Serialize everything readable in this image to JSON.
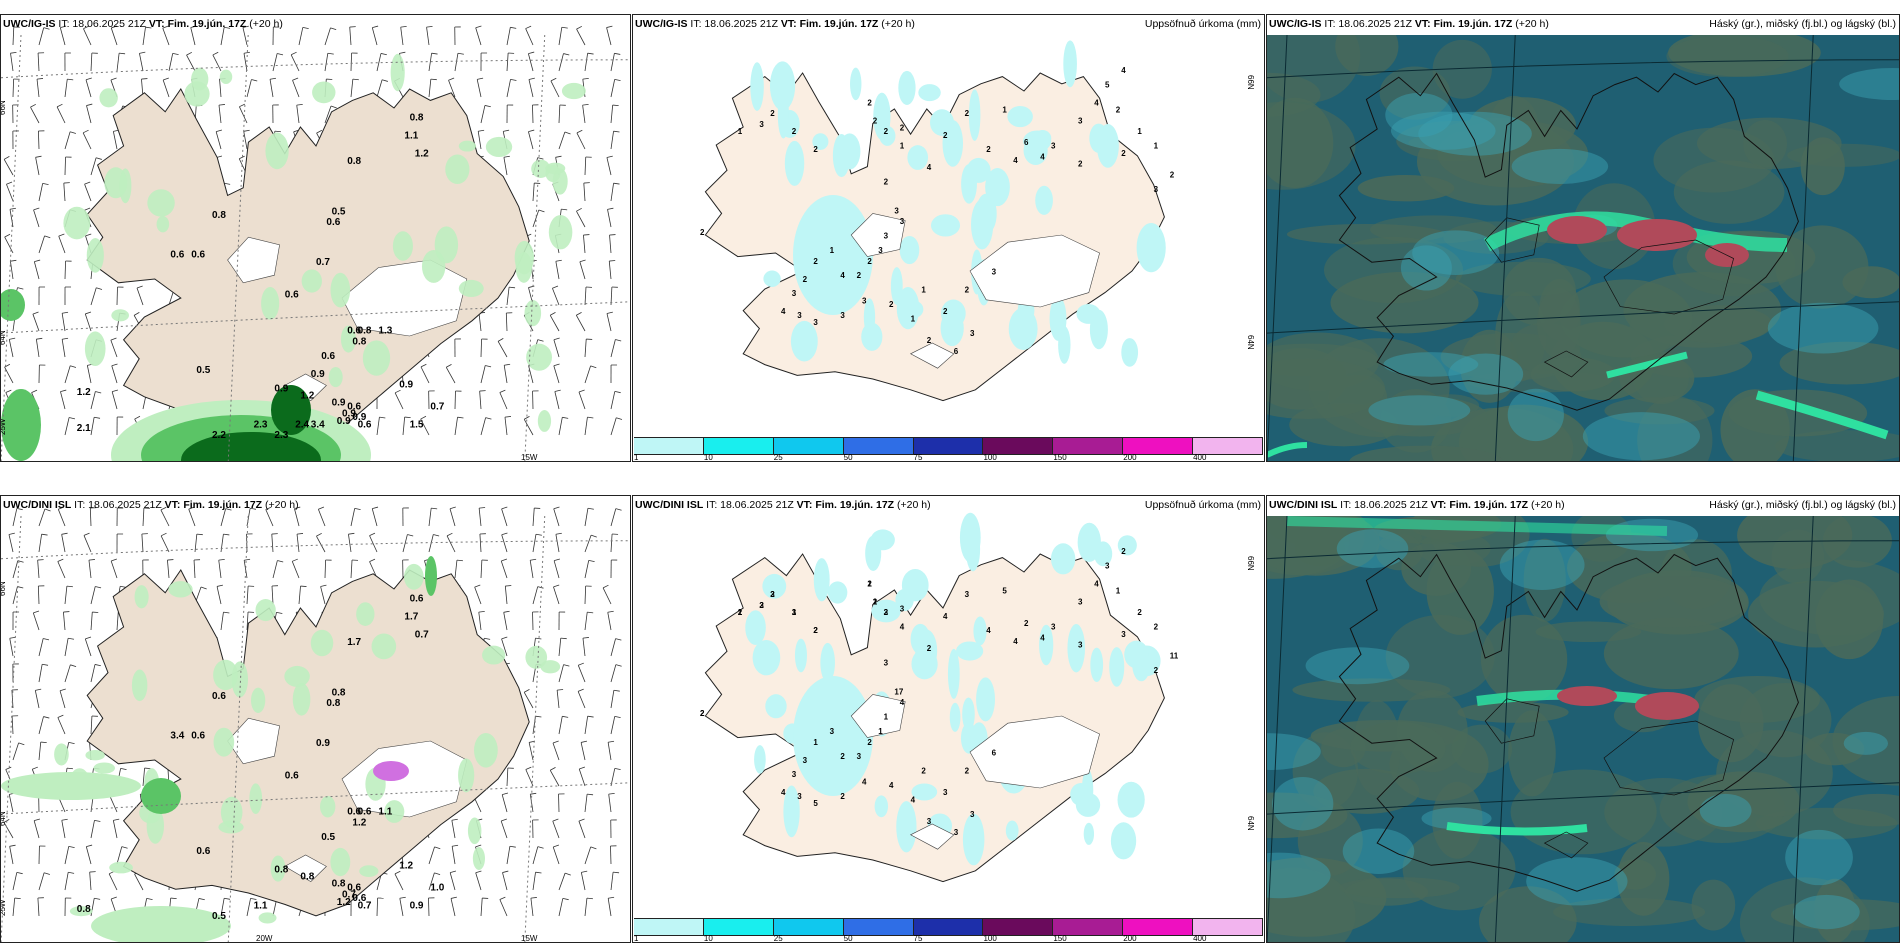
{
  "colors": {
    "land": "#ecdfd0",
    "sea": "#ffffff",
    "precip_light": "#bfeec0",
    "precip_mid": "#5bc466",
    "precip_dark": "#0b6b1c",
    "accum_cyan": "#bff6f6",
    "cloud_bg": "#1f5f72",
    "cloud_grey": "#4a6a5a",
    "cloud_green": "#2fe0a0",
    "cloud_red": "#b04a5a"
  },
  "panels": [
    {
      "id": "p1",
      "model": "UWC/IG-IS",
      "it_label": " IT: 18.06.2025 21Z ",
      "vt_label": "VT: Fim. 19.jún. 17Z",
      "lead": " (+20 h)",
      "right_title": "",
      "coord_labels": [
        "66N",
        "64N",
        "25W",
        "15W"
      ],
      "values": [
        "0.8",
        "1.1",
        "1.2",
        "0.8",
        "0.5",
        "0.6",
        "0.8",
        "0.6",
        "0.6",
        "0.7",
        "0.6",
        "0.6",
        "0.8",
        "1.3",
        "0.8",
        "0.6",
        "0.5",
        "0.9",
        "1.2",
        "0.9",
        "0.9",
        "0.9",
        "0.6",
        "0.9",
        "0.6",
        "1.5",
        "0.7",
        "0.9",
        "2.1",
        "2.2",
        "2.3",
        "2.3",
        "2.4",
        "3.4",
        "0.9",
        "1.2"
      ]
    },
    {
      "id": "p2",
      "model": "UWC/IG-IS",
      "it_label": " IT: 18.06.2025 21Z ",
      "vt_label": "VT: Fim. 19.jún. 17Z",
      "lead": " (+20 h)",
      "right_title": "Uppsöfnuð úrkoma (mm)",
      "coord_labels": [
        "66N",
        "64N"
      ],
      "values": [
        "2",
        "1",
        "3",
        "2",
        "2",
        "2",
        "2",
        "2",
        "2",
        "2",
        "1",
        "2",
        "4",
        "2",
        "2",
        "1",
        "2",
        "4",
        "6",
        "3",
        "3",
        "4",
        "5",
        "4",
        "2",
        "1",
        "2",
        "1",
        "3",
        "2",
        "2",
        "4",
        "3",
        "3",
        "3",
        "3",
        "2",
        "2",
        "4",
        "1",
        "2",
        "2",
        "3",
        "4",
        "3",
        "3",
        "3",
        "3",
        "2",
        "1",
        "2",
        "6",
        "3",
        "2",
        "1",
        "2",
        "3"
      ]
    },
    {
      "id": "p3",
      "model": "UWC/IG-IS",
      "it_label": " IT: 18.06.2025 21Z ",
      "vt_label": "VT: Fim. 19.jún. 17Z",
      "lead": " (+20 h)",
      "right_title": "Háský (gr.), miðský (fj.bl.) og lágský (bl.)"
    },
    {
      "id": "p4",
      "model": "UWC/DINI ISL",
      "it_label": " IT: 18.06.2025 21Z ",
      "vt_label": "VT: Fim. 19.jún. 17Z",
      "lead": " (+20 h)",
      "right_title": "",
      "coord_labels": [
        "66N",
        "64N",
        "25W",
        "20W",
        "15W"
      ],
      "values": [
        "0.6",
        "1.7",
        "0.7",
        "1.7",
        "0.8",
        "0.8",
        "0.6",
        "3.4",
        "0.6",
        "0.9",
        "0.6",
        "0.6",
        "0.6",
        "1.1",
        "1.2",
        "0.5",
        "0.6",
        "0.8",
        "0.8",
        "0.8",
        "0.7",
        "1.2",
        "0.6",
        "0.6",
        "0.7",
        "0.9",
        "1.0",
        "1.2",
        "0.8",
        "0.5",
        "1.1"
      ]
    },
    {
      "id": "p5",
      "model": "UWC/DINI ISL",
      "it_label": " IT: 18.06.2025 21Z ",
      "vt_label": "VT: Fim. 19.jún. 17Z",
      "lead": " (+20 h)",
      "right_title": "Uppsöfnuð úrkoma (mm)",
      "coord_labels": [
        "66N",
        "64N"
      ],
      "values": [
        "2",
        "2",
        "3",
        "3",
        "3",
        "2",
        "1",
        "2",
        "3",
        "3",
        "4",
        "3",
        "2",
        "4",
        "3",
        "5",
        "4",
        "4",
        "2",
        "3",
        "3",
        "4",
        "3",
        "2",
        "1",
        "2",
        "3",
        "2",
        "2",
        "11",
        "3",
        "4",
        "17",
        "4",
        "1",
        "1",
        "2",
        "3",
        "2",
        "3",
        "1",
        "3",
        "3",
        "4",
        "3",
        "5",
        "2",
        "4",
        "4",
        "4",
        "3",
        "3",
        "3",
        "3",
        "2",
        "2",
        "6",
        "2",
        "1",
        "2",
        "2",
        "1",
        "2",
        "2",
        "1",
        "2"
      ]
    },
    {
      "id": "p6",
      "model": "UWC/DINI ISL",
      "it_label": " IT: 18.06.2025 21Z ",
      "vt_label": "VT: Fim. 19.jún. 17Z",
      "lead": " (+20 h)",
      "right_title": "Háský (gr.), miðský (fj.bl.) og lágský (bl.)"
    }
  ],
  "legend": {
    "ticks": [
      "1",
      "10",
      "25",
      "50",
      "75",
      "100",
      "150",
      "200",
      "400"
    ],
    "colors": [
      "#bff6f6",
      "#19eeee",
      "#10c8ee",
      "#2f6ee6",
      "#1d2faa",
      "#6a0a5c",
      "#a81c94",
      "#ee10c0",
      "#f2b4ee"
    ]
  }
}
